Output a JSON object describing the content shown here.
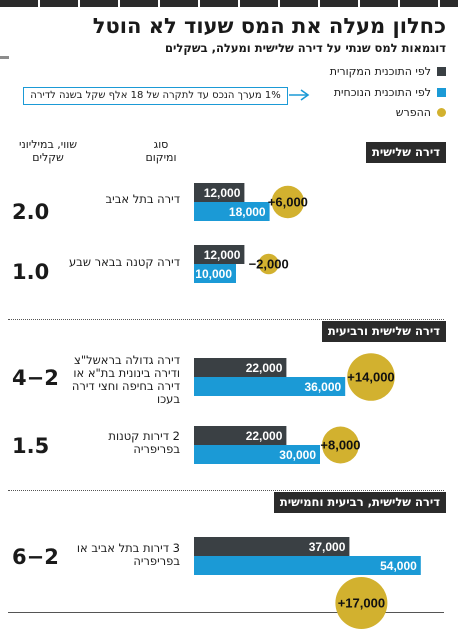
{
  "title": "כחלון מעלה את המס שעוד לא הוטל",
  "subtitle": "דוגמאות למס שנתי על דירה שלישית ומעלה, בשקלים",
  "legend": [
    {
      "label": "לפי התוכנית המקורית",
      "color": "#3a4044",
      "shape": "square"
    },
    {
      "label": "לפי התוכנית הנוכחית",
      "color": "#1b9ad6",
      "shape": "square"
    },
    {
      "label": "ההפרש",
      "color": "#d2b12f",
      "shape": "circle"
    }
  ],
  "callout": {
    "text": "1% מערך הנכס עד לתקרה של 18 אלף שקל בשנה לדירה"
  },
  "column_headers": {
    "worth": "שווי, במיליוני שקלים",
    "type": "סוג ומיקום"
  },
  "chart_data": {
    "type": "bar",
    "series": [
      {
        "name": "לפי התוכנית המקורית",
        "color": "#3a4044"
      },
      {
        "name": "לפי התוכנית הנוכחית",
        "color": "#1b9ad6"
      },
      {
        "name": "ההפרש",
        "color": "#d2b12f"
      }
    ],
    "sections": [
      {
        "title": "דירה שלישית",
        "rows": [
          {
            "label": "דירה בתל אביב",
            "worth": "2.0",
            "original": 12000,
            "current": 18000,
            "difference": "+6,000",
            "difference_value": 6000
          },
          {
            "label": "דירה קטנה בבאר שבע",
            "worth": "1.0",
            "original": 12000,
            "current": 10000,
            "difference": "−2,000",
            "difference_value": -2000
          }
        ]
      },
      {
        "title": "דירה שלישית ורביעית",
        "rows": [
          {
            "label": "דירה גדולה בראשל\"צ ודירה בינונית בת\"א או דירה בחיפה וחצי דירה בעכו",
            "worth": "4−2",
            "original": 22000,
            "current": 36000,
            "difference": "+14,000",
            "difference_value": 14000
          },
          {
            "label": "2 דירות קטנות בפריפריה",
            "worth": "1.5",
            "original": 22000,
            "current": 30000,
            "difference": "+8,000",
            "difference_value": 8000
          }
        ]
      },
      {
        "title": "דירה שלישית, רביעית וחמישית",
        "rows": [
          {
            "label": "3 דירות בתל אביב או בפריפריה",
            "worth": "6−2",
            "original": 37000,
            "current": 54000,
            "difference": "+17,000",
            "difference_value": 17000
          }
        ]
      }
    ]
  }
}
